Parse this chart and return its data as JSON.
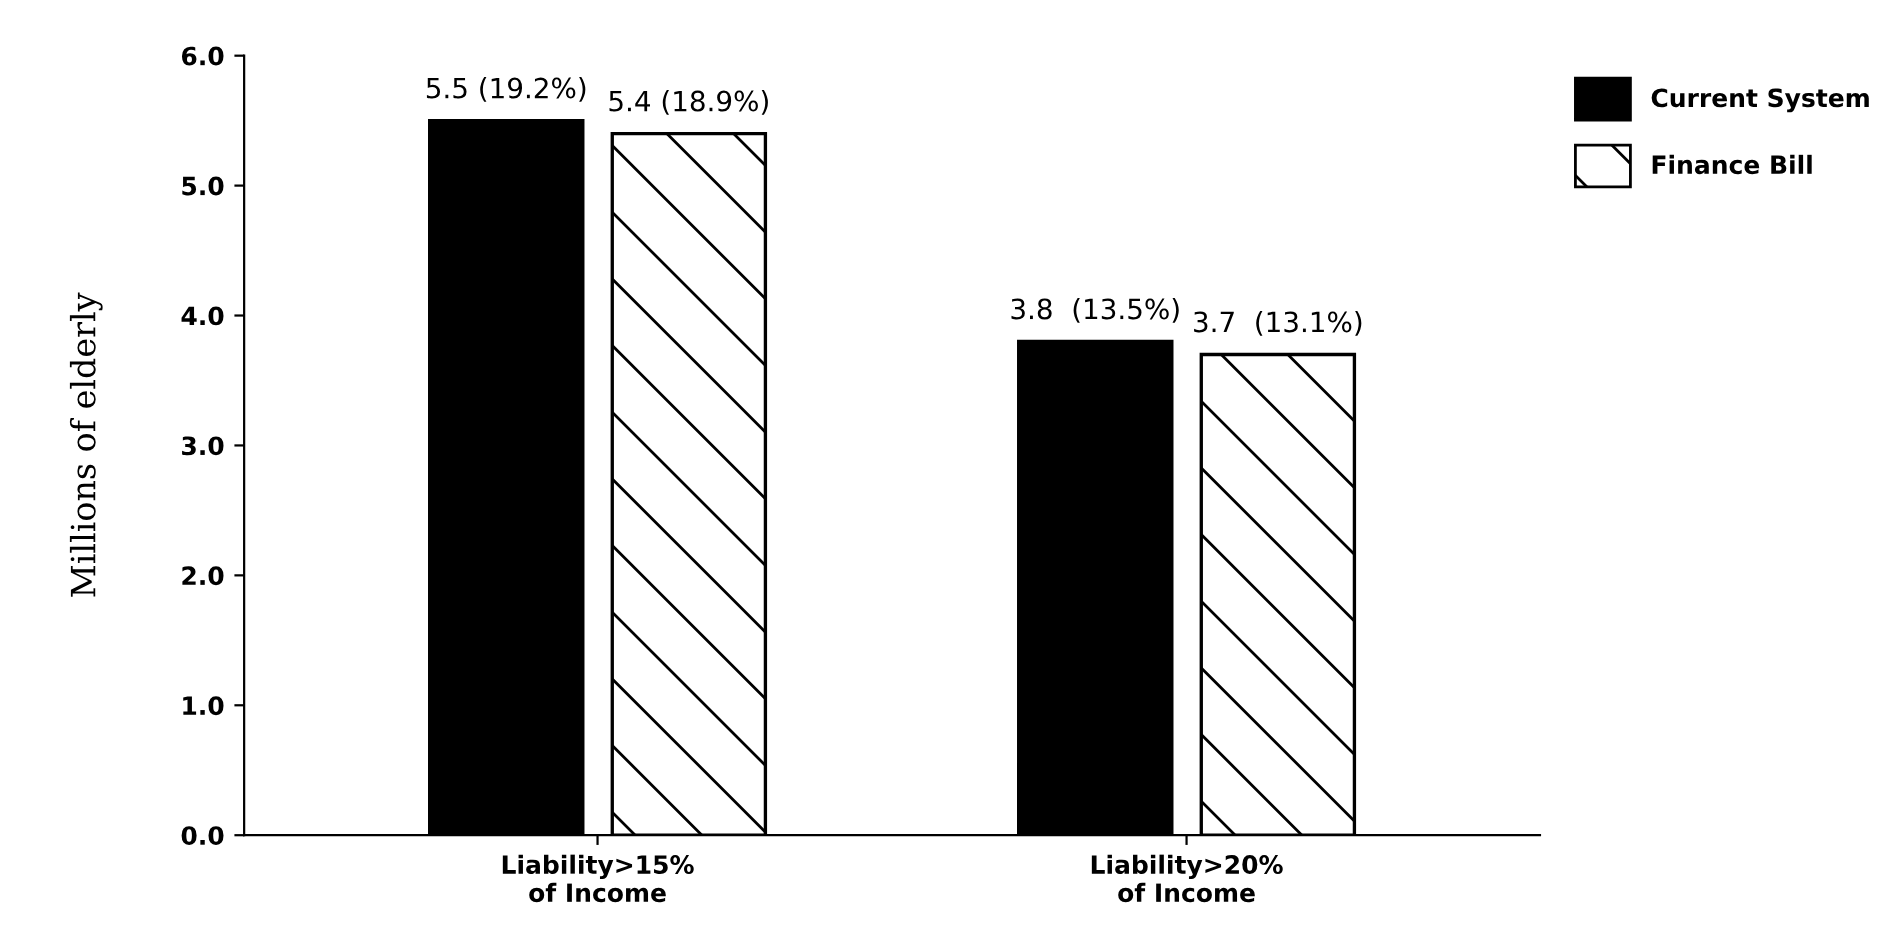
{
  "chart_data": {
    "type": "bar",
    "ylabel": "Millions of elderly",
    "categories": [
      "Liability>15%\nof Income",
      "Liability>20%\nof Income"
    ],
    "series": [
      {
        "name": "Current System",
        "color": "#000000",
        "values": [
          5.5,
          3.8
        ],
        "value_labels": [
          "5.5 (19.2%)",
          "3.8  (13.5%)"
        ]
      },
      {
        "name": "Finance Bill",
        "color": "#000000",
        "values": [
          5.4,
          3.7
        ],
        "value_labels": [
          "5.4 (18.9%)",
          "3.7  (13.1%)"
        ]
      }
    ],
    "ylim": [
      0,
      6
    ],
    "yticks": [
      {
        "value": 0,
        "label": "0.0"
      },
      {
        "value": 1,
        "label": "1.0"
      },
      {
        "value": 2,
        "label": "2.0"
      },
      {
        "value": 3,
        "label": "3.0"
      },
      {
        "value": 4,
        "label": "4.0"
      },
      {
        "value": 5,
        "label": "5.0"
      },
      {
        "value": 6,
        "label": "6.0"
      }
    ],
    "grid": false,
    "legend": "top right"
  }
}
